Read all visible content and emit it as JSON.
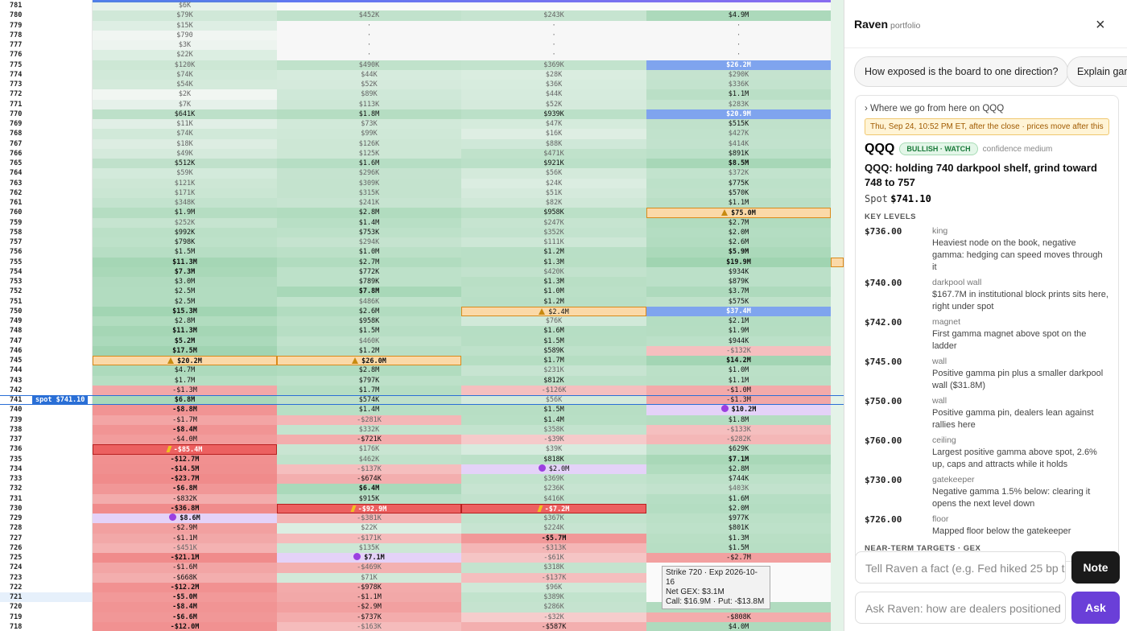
{
  "grid": {
    "spot_row": 40,
    "spot_label": "spot $741.10",
    "rows": [
      [
        "781",
        "$6K",
        null,
        null,
        null
      ],
      [
        "780",
        "$79K",
        "$452K",
        "$243K",
        "$4.9M"
      ],
      [
        "779",
        "$15K",
        "·",
        "·",
        "·"
      ],
      [
        "778",
        "$790",
        "·",
        "·",
        "·"
      ],
      [
        "777",
        "$3K",
        "·",
        "·",
        "·"
      ],
      [
        "776",
        "$22K",
        "·",
        "·",
        "·"
      ],
      [
        "775",
        "$120K",
        "$490K",
        "$369K",
        {
          "text": "$26.2M",
          "style": "top"
        }
      ],
      [
        "774",
        "$74K",
        "$44K",
        "$28K",
        "$290K"
      ],
      [
        "773",
        "$54K",
        "$52K",
        "$36K",
        "$336K"
      ],
      [
        "772",
        "$2K",
        "$89K",
        "$44K",
        "$1.1M"
      ],
      [
        "771",
        "$7K",
        "$113K",
        "$52K",
        "$283K"
      ],
      [
        "770",
        "$641K",
        "$1.8M",
        "$939K",
        {
          "text": "$20.9M",
          "style": "top"
        }
      ],
      [
        "769",
        "$11K",
        "$73K",
        "$47K",
        "$515K"
      ],
      [
        "768",
        "$74K",
        "$99K",
        "$16K",
        "$427K"
      ],
      [
        "767",
        "$18K",
        "$126K",
        "$88K",
        "$414K"
      ],
      [
        "766",
        "$49K",
        "$125K",
        "$471K",
        "$891K"
      ],
      [
        "765",
        "$512K",
        "$1.6M",
        "$921K",
        "$8.5M"
      ],
      [
        "764",
        "$59K",
        "$296K",
        "$56K",
        "$372K"
      ],
      [
        "763",
        "$121K",
        "$309K",
        "$24K",
        "$775K"
      ],
      [
        "762",
        "$171K",
        "$315K",
        "$51K",
        "$570K"
      ],
      [
        "761",
        "$348K",
        "$241K",
        "$82K",
        "$1.1M"
      ],
      [
        "760",
        "$1.9M",
        "$2.8M",
        "$958K",
        {
          "text": "$75.0M",
          "style": "warn"
        }
      ],
      [
        "759",
        "$252K",
        "$1.4M",
        "$247K",
        "$2.7M"
      ],
      [
        "758",
        "$992K",
        "$753K",
        "$352K",
        "$2.0M"
      ],
      [
        "757",
        "$798K",
        "$294K",
        "$111K",
        "$2.6M"
      ],
      [
        "756",
        "$1.5M",
        "$1.0M",
        "$1.2M",
        "$5.9M"
      ],
      [
        "755",
        "$11.3M",
        "$2.7M",
        "$1.3M",
        "$19.9M"
      ],
      [
        "754",
        "$7.3M",
        "$772K",
        "$420K",
        "$934K"
      ],
      [
        "753",
        "$3.0M",
        "$789K",
        "$1.3M",
        "$879K"
      ],
      [
        "752",
        "$2.5M",
        "$7.8M",
        "$1.0M",
        "$3.7M"
      ],
      [
        "751",
        "$2.5M",
        "$486K",
        "$1.2M",
        "$575K"
      ],
      [
        "750",
        "$15.3M",
        "$2.6M",
        {
          "text": "$2.4M",
          "style": "warn"
        },
        {
          "text": "$37.4M",
          "style": "top"
        }
      ],
      [
        "749",
        "$2.8M",
        "$958K",
        "$76K",
        "$2.1M"
      ],
      [
        "748",
        "$11.3M",
        "$1.5M",
        "$1.6M",
        "$1.9M"
      ],
      [
        "747",
        "$5.2M",
        "$460K",
        "$1.5M",
        "$944K"
      ],
      [
        "746",
        "$17.5M",
        "$1.2M",
        "$589K",
        "-$132K"
      ],
      [
        "745",
        {
          "text": "$20.2M",
          "style": "warn"
        },
        {
          "text": "$26.0M",
          "style": "warn"
        },
        "$1.7M",
        "$14.2M"
      ],
      [
        "744",
        "$4.7M",
        "$2.8M",
        "$231K",
        "$1.0M"
      ],
      [
        "743",
        "$1.7M",
        "$797K",
        "$812K",
        "$1.1M"
      ],
      [
        "742",
        "-$1.3M",
        "$1.7M",
        "-$126K",
        "-$1.0M"
      ],
      [
        "741",
        "$6.8M",
        "$574K",
        "$56K",
        "-$1.3M"
      ],
      [
        "740",
        "-$8.8M",
        "$1.4M",
        "$1.5M",
        {
          "text": "$10.2M",
          "style": "magnet"
        }
      ],
      [
        "739",
        "-$1.7M",
        "-$281K",
        "$1.4M",
        "$1.8M"
      ],
      [
        "738",
        "-$8.4M",
        "$332K",
        "$358K",
        "-$133K"
      ],
      [
        "737",
        "-$4.0M",
        "-$721K",
        "-$39K",
        "-$282K"
      ],
      [
        "736",
        {
          "text": "-$85.4M",
          "style": "flip"
        },
        "$176K",
        "$39K",
        "$629K"
      ],
      [
        "735",
        "-$12.7M",
        "$462K",
        "$818K",
        "$7.1M"
      ],
      [
        "734",
        "-$14.5M",
        "-$137K",
        {
          "text": "$2.0M",
          "style": "magnet"
        },
        "$2.8M"
      ],
      [
        "733",
        "-$23.7M",
        "-$674K",
        "$369K",
        "$744K"
      ],
      [
        "732",
        "-$6.8M",
        "$6.4M",
        "$236K",
        "$403K"
      ],
      [
        "731",
        "-$832K",
        "$915K",
        "$416K",
        "$1.6M"
      ],
      [
        "730",
        "-$36.8M",
        {
          "text": "-$92.9M",
          "style": "flip"
        },
        {
          "text": "-$7.2M",
          "style": "flip"
        },
        "$2.0M"
      ],
      [
        "729",
        {
          "text": "$8.6M",
          "style": "magnet"
        },
        "-$381K",
        "$367K",
        "$977K"
      ],
      [
        "728",
        "-$2.9M",
        "$22K",
        "$224K",
        "$801K"
      ],
      [
        "727",
        "-$1.1M",
        "-$171K",
        "-$5.7M",
        "$1.3M"
      ],
      [
        "726",
        "-$451K",
        "$135K",
        "-$313K",
        "$1.5M"
      ],
      [
        "725",
        "-$21.1M",
        {
          "text": "$7.1M",
          "style": "magnet"
        },
        "-$61K",
        "-$2.7M"
      ],
      [
        "724",
        "-$1.6M",
        "-$469K",
        "$318K",
        null
      ],
      [
        "723",
        "-$668K",
        "$71K",
        "-$137K",
        null
      ],
      [
        "722",
        "-$12.2M",
        "-$978K",
        "$96K",
        null
      ],
      [
        "721",
        "-$5.0M",
        "-$1.1M",
        "$389K",
        null
      ],
      [
        "720",
        "-$8.4M",
        "-$2.9M",
        "$286K",
        "$3.1M"
      ],
      [
        "719",
        "-$6.6M",
        "-$737K",
        "-$32K",
        "-$808K"
      ],
      [
        "718",
        "-$12.0M",
        "-$163K",
        "-$587K",
        "$4.0M"
      ]
    ]
  },
  "tooltip": {
    "lines": [
      "Strike 720 · Exp 2026-10-16",
      "Net GEX: $3.1M",
      "Call: $16.9M · Put: -$13.8M"
    ]
  },
  "panel": {
    "title": "Raven",
    "subtitle": "portfolio",
    "close": "×",
    "chips": [
      "How exposed is the board to one direction?",
      "Explain gamma"
    ],
    "card": {
      "toggle": "› Where we go from here on QQQ",
      "banner": "Thu, Sep 24, 10:52 PM ET, after the close · prices move after this",
      "ticker": "QQQ",
      "badge": "BULLISH · WATCH",
      "confidence": "confidence medium",
      "headline": "QQQ: holding 740 darkpool shelf, grind toward 748 to 757",
      "spot_label": "Spot",
      "spot_value": "$741.10",
      "levels_heading": "KEY LEVELS",
      "levels": [
        {
          "price": "$736.00",
          "kind": "king",
          "text": "Heaviest node on the book, negative gamma: hedging can speed moves through it"
        },
        {
          "price": "$740.00",
          "kind": "darkpool wall",
          "text": "$167.7M in institutional block prints sits here, right under spot"
        },
        {
          "price": "$742.00",
          "kind": "magnet",
          "text": "First gamma magnet above spot on the ladder"
        },
        {
          "price": "$745.00",
          "kind": "wall",
          "text": "Positive gamma pin plus a smaller darkpool wall ($31.8M)"
        },
        {
          "price": "$750.00",
          "kind": "wall",
          "text": "Positive gamma pin, dealers lean against rallies here"
        },
        {
          "price": "$760.00",
          "kind": "ceiling",
          "text": "Largest positive gamma above spot, 2.6% up, caps and attracts while it holds"
        },
        {
          "price": "$730.00",
          "kind": "gatekeeper",
          "text": "Negative gamma 1.5% below: clearing it opens the next level down"
        },
        {
          "price": "$726.00",
          "kind": "floor",
          "text": "Mapped floor below the gatekeeper"
        }
      ],
      "next_heading": "NEAR-TERM TARGETS · GEX"
    },
    "fact_placeholder": "Tell Raven a fact (e.g. Fed hiked 25 bp today)",
    "note_button": "Note",
    "ask_placeholder": "Ask Raven: how are dealers positioned",
    "ask_button": "Ask"
  }
}
